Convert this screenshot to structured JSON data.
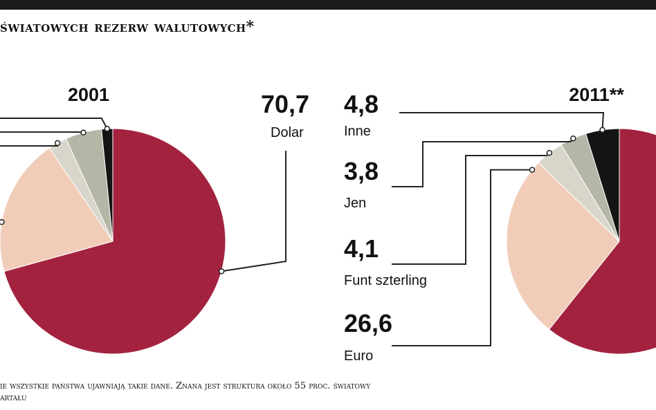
{
  "header": {
    "title": "światowych rezerw walutowych*"
  },
  "footnote": {
    "line1": "ie wszystkie państwa ujawniają takie dane. Znana jest struktura około 55 proc. światowy",
    "line2": "artału"
  },
  "colors": {
    "dolar": "#a3233f",
    "euro": "#f1cdb9",
    "funt": "#d8d6ca",
    "jen": "#b5b6a6",
    "inne": "#141414",
    "leader": "#222222",
    "topbar": "#1b1b1b"
  },
  "chart_data": [
    {
      "type": "pie",
      "title": "2001",
      "slices": [
        {
          "label": "Dolar",
          "value": 70.7
        },
        {
          "label": "Euro",
          "value": 19.8
        },
        {
          "label": "Funt szterling",
          "value": 2.7
        },
        {
          "label": "Jen",
          "value": 5.2
        },
        {
          "label": "Inne",
          "value": 1.6
        }
      ],
      "labels_shown": [
        {
          "value_text": "70,7",
          "label": "Dolar"
        }
      ]
    },
    {
      "type": "pie",
      "title": "2011**",
      "slices": [
        {
          "label": "Dolar",
          "value": 60.7
        },
        {
          "label": "Euro",
          "value": 26.6
        },
        {
          "label": "Funt szterling",
          "value": 4.1
        },
        {
          "label": "Jen",
          "value": 3.8
        },
        {
          "label": "Inne",
          "value": 4.8
        }
      ],
      "labels_shown": [
        {
          "value_text": "4,8",
          "label": "Inne"
        },
        {
          "value_text": "3,8",
          "label": "Jen"
        },
        {
          "value_text": "4,1",
          "label": "Funt szterling"
        },
        {
          "value_text": "26,6",
          "label": "Euro"
        }
      ]
    }
  ]
}
